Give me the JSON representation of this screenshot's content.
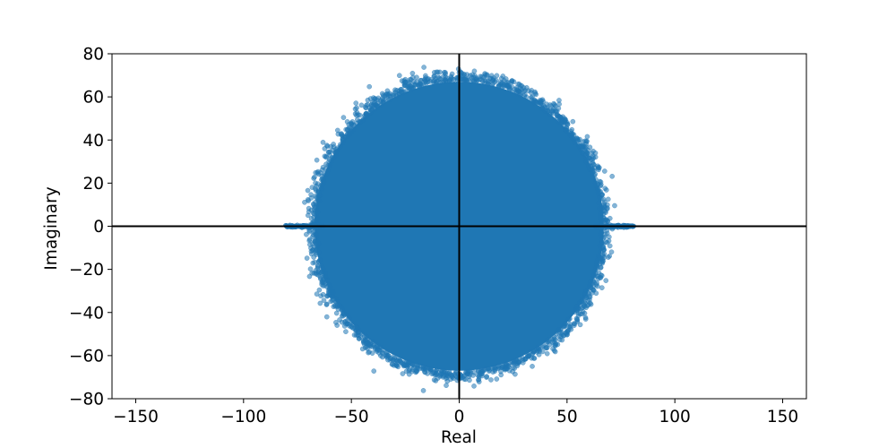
{
  "chart_data": {
    "type": "scatter",
    "title": "",
    "xlabel": "Real",
    "ylabel": "Imaginary",
    "xlim": [
      -161,
      161
    ],
    "ylim": [
      -80,
      80
    ],
    "xticks": [
      -150,
      -100,
      -50,
      0,
      50,
      100,
      150
    ],
    "yticks": [
      -80,
      -60,
      -40,
      -20,
      0,
      20,
      40,
      60,
      80
    ],
    "grid": false,
    "legend": "none",
    "reference_lines": {
      "horizontal_at": 0,
      "vertical_at": 0,
      "color": "#000000"
    },
    "marker_color": "#1f77b4",
    "marker_alpha": 0.55,
    "series": [
      {
        "distribution": "dense disk of points centred at origin",
        "center": [
          0,
          0
        ],
        "radius_real": 67,
        "radius_imag": 67,
        "edge_real_extent": [
          -72,
          72
        ],
        "edge_imag_extent": [
          -74,
          74
        ],
        "real_axis_cluster": {
          "range": [
            -81,
            81
          ],
          "imag": 0
        }
      }
    ]
  }
}
